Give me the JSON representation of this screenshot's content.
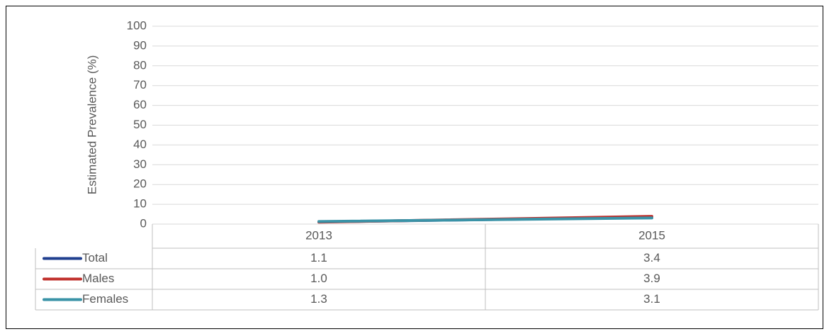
{
  "chart_data": {
    "type": "line",
    "y_label": "Estimated Prevalence (%)",
    "categories": [
      "2013",
      "2015"
    ],
    "series": [
      {
        "name": "Total",
        "color": "#203f8f",
        "values": [
          1.1,
          3.4
        ],
        "value_labels": [
          "1.1",
          "3.4"
        ]
      },
      {
        "name": "Males",
        "color": "#c0302c",
        "values": [
          1.0,
          3.9
        ],
        "value_labels": [
          "1.0",
          "3.9"
        ]
      },
      {
        "name": "Females",
        "color": "#3a93a7",
        "values": [
          1.3,
          3.1
        ],
        "value_labels": [
          "1.3",
          "3.1"
        ]
      }
    ],
    "ylim": [
      0,
      100
    ],
    "yticks": [
      0,
      10,
      20,
      30,
      40,
      50,
      60,
      70,
      80,
      90,
      100
    ],
    "grid": true,
    "data_table": true
  }
}
